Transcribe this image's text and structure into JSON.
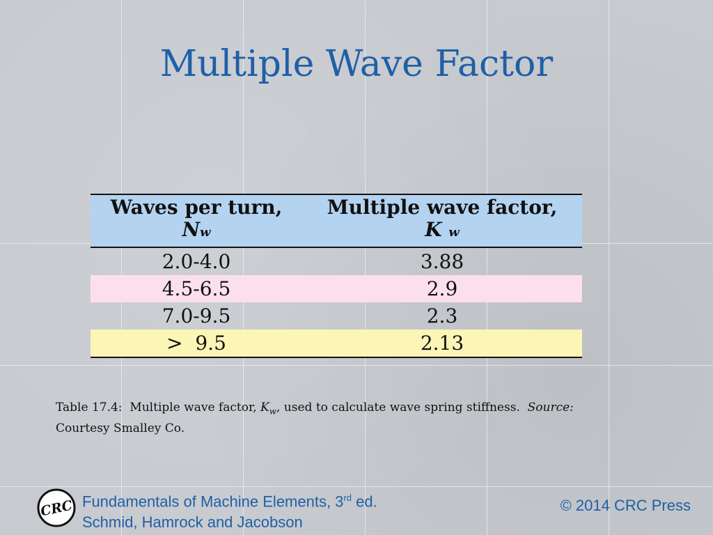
{
  "slide": {
    "title": "Multiple Wave Factor"
  },
  "table": {
    "col1_header": "Waves per turn,",
    "col1_symbol": "N",
    "col1_sub": "w",
    "col2_header": "Multiple wave factor,",
    "col2_symbol": "K",
    "col2_sub": "w",
    "rows": [
      {
        "waves": "2.0-4.0",
        "factor": "3.88",
        "color": "none"
      },
      {
        "waves": "4.5-6.5",
        "factor": "2.9",
        "color": "#fbe0ec"
      },
      {
        "waves": "7.0-9.5",
        "factor": "2.3",
        "color": "none"
      },
      {
        "waves": ">  9.5",
        "factor": "2.13",
        "color": "#fbf5b6"
      }
    ]
  },
  "caption": {
    "prefix": "Table 17.4:  Multiple wave factor, ",
    "symbol": "K",
    "sub": "w",
    "middle": ", used to calculate wave spring stiffness.  ",
    "source_label": "Source:",
    "line2": "Courtesy Smalley Co."
  },
  "footer": {
    "book_title_prefix": "Fundamentals of Machine Elements, 3",
    "edition_sup": "rd",
    "book_title_suffix": " ed.",
    "authors": "Schmid, Hamrock and Jacobson",
    "copyright": "© 2014 CRC Press",
    "logo_text": "CRC"
  },
  "colors": {
    "title_blue": "#1f5fa6",
    "header_blue": "#b3d3f1",
    "row_pink": "#fbe0ec",
    "row_yellow": "#fbf5b6"
  }
}
